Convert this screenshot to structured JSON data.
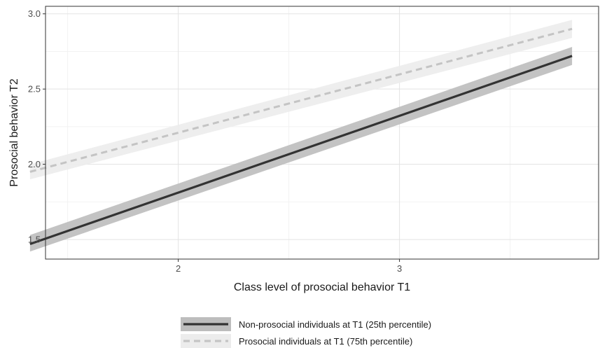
{
  "chart_data": {
    "type": "line",
    "xlabel": "Class level of prosocial behavior T1",
    "ylabel": "Prosocial behavior T2",
    "xlim": [
      1.4,
      3.9
    ],
    "ylim": [
      1.37,
      3.05
    ],
    "x_ticks": [
      2,
      3
    ],
    "x_tick_labels": [
      "2",
      "3"
    ],
    "x_minor_ticks": [
      1.5,
      2.5,
      3.5
    ],
    "y_ticks": [
      1.5,
      2.0,
      2.5,
      3.0
    ],
    "y_tick_labels": [
      "1.5",
      "2.0",
      "2.5",
      "3.0"
    ],
    "y_minor_ticks": [
      1.75,
      2.25,
      2.75
    ],
    "grid": true,
    "legend_position": "bottom",
    "series": [
      {
        "name": "Non-prosocial individuals at T1 (25th percentile)",
        "style": "solid",
        "color": "#333333",
        "band_color": "#bdbdbd",
        "x": [
          1.33,
          3.78
        ],
        "y": [
          1.47,
          2.72
        ],
        "ci_lower": [
          1.42,
          2.66
        ],
        "ci_upper": [
          1.53,
          2.78
        ]
      },
      {
        "name": "Prosocial individuals at T1 (75th percentile)",
        "style": "dashed",
        "color": "#c4c4c4",
        "band_color": "#ececec",
        "x": [
          1.33,
          3.78
        ],
        "y": [
          1.95,
          2.9
        ],
        "ci_lower": [
          1.9,
          2.84
        ],
        "ci_upper": [
          2.0,
          2.96
        ]
      }
    ]
  }
}
